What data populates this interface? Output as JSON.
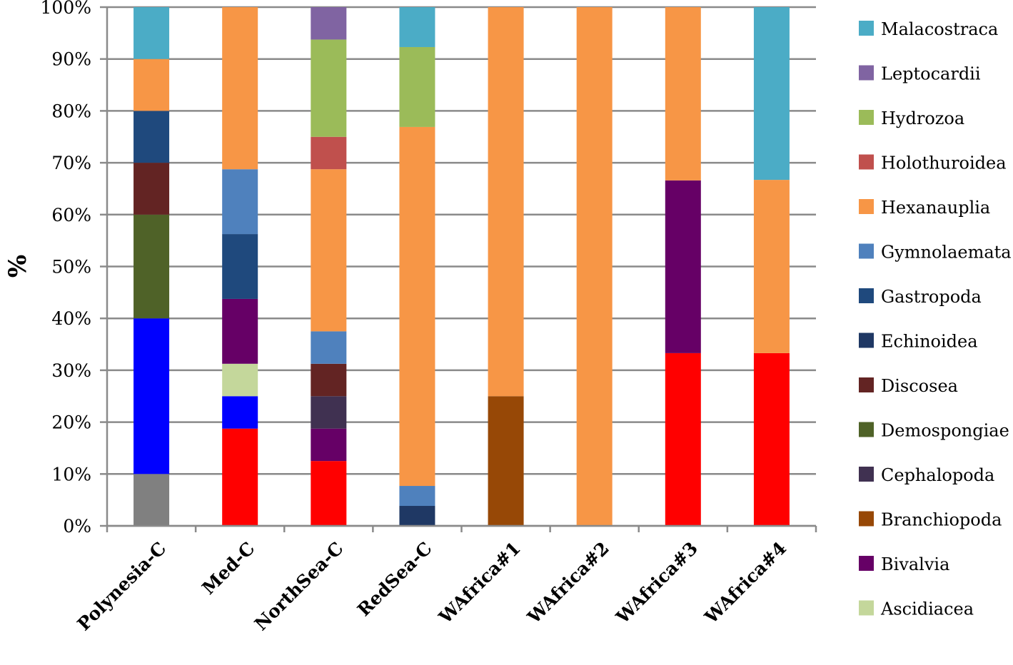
{
  "chart_data": {
    "type": "bar",
    "stacked": true,
    "percent": true,
    "ylabel": "%",
    "xlabel": "",
    "title": "",
    "ylim": [
      0,
      100
    ],
    "yticks": [
      "0%",
      "10%",
      "20%",
      "30%",
      "40%",
      "50%",
      "60%",
      "70%",
      "80%",
      "90%",
      "100%"
    ],
    "grid": true,
    "legend_position": "right",
    "categories": [
      "Polynesia-C",
      "Med-C",
      "NorthSea-C",
      "RedSea-C",
      "WAfrica#1",
      "WAfrica#2",
      "WAfrica#3",
      "WAfrica#4"
    ],
    "series": [
      {
        "name": "",
        "color": "#808080",
        "values": [
          10,
          0,
          0,
          0,
          0,
          0,
          0,
          0
        ]
      },
      {
        "name": "",
        "color": "#ff0000",
        "values": [
          0,
          18.75,
          12.5,
          0,
          0,
          0,
          33.3,
          33.3
        ]
      },
      {
        "name": "",
        "color": "#0000ff",
        "values": [
          30,
          6.25,
          0,
          0,
          0,
          0,
          0,
          0
        ]
      },
      {
        "name": "Ascidiacea",
        "color": "#c4d79b",
        "values": [
          0,
          6.25,
          0,
          0,
          0,
          0,
          0,
          0
        ]
      },
      {
        "name": "Bivalvia",
        "color": "#660066",
        "values": [
          0,
          12.5,
          6.25,
          0,
          0,
          0,
          33.3,
          0
        ]
      },
      {
        "name": "Branchiopoda",
        "color": "#974806",
        "values": [
          0,
          0,
          0,
          0,
          25,
          0,
          0,
          0
        ]
      },
      {
        "name": "Cephalopoda",
        "color": "#403151",
        "values": [
          0,
          0,
          6.25,
          0,
          0,
          0,
          0,
          0
        ]
      },
      {
        "name": "Demospongiae",
        "color": "#4f6228",
        "values": [
          20,
          0,
          0,
          0,
          0,
          0,
          0,
          0
        ]
      },
      {
        "name": "Discosea",
        "color": "#632423",
        "values": [
          10,
          0,
          6.25,
          0,
          0,
          0,
          0,
          0
        ]
      },
      {
        "name": "Echinoidea",
        "color": "#1f3864",
        "values": [
          0,
          0,
          0,
          3.85,
          0,
          0,
          0,
          0
        ]
      },
      {
        "name": "Gastropoda",
        "color": "#1f497d",
        "values": [
          10,
          12.5,
          0,
          0,
          0,
          0,
          0,
          0
        ]
      },
      {
        "name": "Gymnolaemata",
        "color": "#4f81bd",
        "values": [
          0,
          12.5,
          6.25,
          3.85,
          0,
          0,
          0,
          0
        ]
      },
      {
        "name": "Hexanauplia",
        "color": "#f79646",
        "values": [
          10,
          31.25,
          31.25,
          69.2,
          75,
          100,
          33.4,
          33.4
        ]
      },
      {
        "name": "Holothuroidea",
        "color": "#c0504d",
        "values": [
          0,
          0,
          6.25,
          0,
          0,
          0,
          0,
          0
        ]
      },
      {
        "name": "Hydrozoa",
        "color": "#9bbb59",
        "values": [
          0,
          0,
          18.75,
          15.4,
          0,
          0,
          0,
          0
        ]
      },
      {
        "name": "Leptocardii",
        "color": "#8064a2",
        "values": [
          0,
          0,
          6.25,
          0,
          0,
          0,
          0,
          0
        ]
      },
      {
        "name": "Malacostraca",
        "color": "#4bacc6",
        "values": [
          10,
          0,
          0,
          7.7,
          0,
          0,
          0,
          33.3
        ]
      }
    ],
    "legend": [
      {
        "name": "Malacostraca",
        "color": "#4bacc6"
      },
      {
        "name": "Leptocardii",
        "color": "#8064a2"
      },
      {
        "name": "Hydrozoa",
        "color": "#9bbb59"
      },
      {
        "name": "Holothuroidea",
        "color": "#c0504d"
      },
      {
        "name": "Hexanauplia",
        "color": "#f79646"
      },
      {
        "name": "Gymnolaemata",
        "color": "#4f81bd"
      },
      {
        "name": "Gastropoda",
        "color": "#1f497d"
      },
      {
        "name": "Echinoidea",
        "color": "#1f3864"
      },
      {
        "name": "Discosea",
        "color": "#632423"
      },
      {
        "name": "Demospongiae",
        "color": "#4f6228"
      },
      {
        "name": "Cephalopoda",
        "color": "#403151"
      },
      {
        "name": "Branchiopoda",
        "color": "#974806"
      },
      {
        "name": "Bivalvia",
        "color": "#660066"
      },
      {
        "name": "Ascidiacea",
        "color": "#c4d79b"
      }
    ]
  }
}
